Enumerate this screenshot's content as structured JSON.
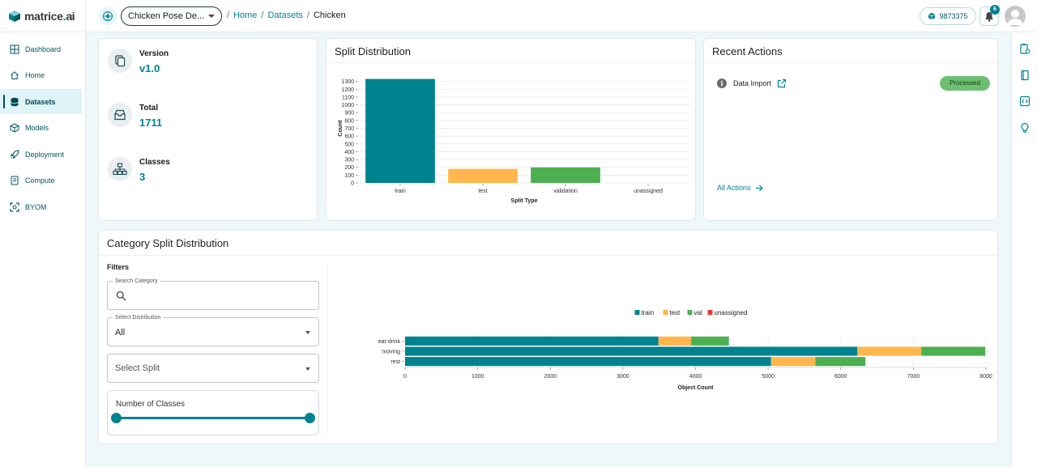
{
  "brand": {
    "logo_pre": "matrice",
    "logo_dot": ".",
    "logo_post": "ai"
  },
  "sidebar": {
    "items": [
      {
        "label": "Dashboard",
        "icon": "grid-icon"
      },
      {
        "label": "Home",
        "icon": "home-icon"
      },
      {
        "label": "Datasets",
        "icon": "database-icon",
        "active": true
      },
      {
        "label": "Models",
        "icon": "cube-icon"
      },
      {
        "label": "Deployment",
        "icon": "rocket-icon"
      },
      {
        "label": "Compute",
        "icon": "server-icon"
      },
      {
        "label": "BYOM",
        "icon": "scan-icon"
      }
    ]
  },
  "header": {
    "project": "Chicken Pose De...",
    "breadcrumbs": {
      "home": "Home",
      "datasets": "Datasets",
      "current": "Chicken"
    },
    "breadcrumb_sep": "/",
    "credits": "9873375",
    "notifications": "6"
  },
  "summary": {
    "version_label": "Version",
    "version_value": "v1.0",
    "total_label": "Total",
    "total_value": "1711",
    "classes_label": "Classes",
    "classes_value": "3"
  },
  "split_card": {
    "title": "Split Distribution"
  },
  "recent": {
    "title": "Recent Actions",
    "action_label": "Data Import",
    "status": "Processed",
    "all_actions": "All Actions"
  },
  "category": {
    "title": "Category Split Distribution",
    "filters_title": "Filters",
    "search_label": "Search Category",
    "distribution_label": "Select Distribution",
    "distribution_value": "All",
    "split_placeholder": "Select Split",
    "classes_slider_label": "Number of Classes"
  },
  "colors": {
    "teal": "#00838f",
    "orange": "#ffb74d",
    "green": "#4caf50",
    "red": "#e53935"
  },
  "chart_data": [
    {
      "type": "bar",
      "xlabel": "Split Type",
      "ylabel": "Count",
      "categories": [
        "train",
        "test",
        "validation",
        "unassigned"
      ],
      "values": [
        1332,
        180,
        199,
        0
      ],
      "bar_colors": [
        "#00838f",
        "#ffb74d",
        "#4caf50",
        "#e53935"
      ],
      "yticks": [
        0,
        100,
        200,
        300,
        400,
        500,
        600,
        700,
        800,
        900,
        1000,
        1100,
        1200,
        1300
      ],
      "ylim": [
        0,
        1400
      ],
      "grid": true
    },
    {
      "type": "bar",
      "orientation": "horizontal",
      "stacked": true,
      "xlabel": "Object Count",
      "categories": [
        "eat-drink",
        "moving",
        "rest"
      ],
      "series": [
        {
          "name": "train",
          "color": "#00838f",
          "values": [
            3490,
            6230,
            5040
          ]
        },
        {
          "name": "test",
          "color": "#ffb74d",
          "values": [
            450,
            880,
            610
          ]
        },
        {
          "name": "val",
          "color": "#4caf50",
          "values": [
            520,
            880,
            690
          ]
        },
        {
          "name": "unassigned",
          "color": "#e53935",
          "values": [
            0,
            0,
            0
          ]
        }
      ],
      "xticks": [
        0,
        1000,
        2000,
        3000,
        4000,
        5000,
        6000,
        7000,
        8000
      ],
      "xlim": [
        0,
        8000
      ],
      "legend": "top-center"
    }
  ]
}
